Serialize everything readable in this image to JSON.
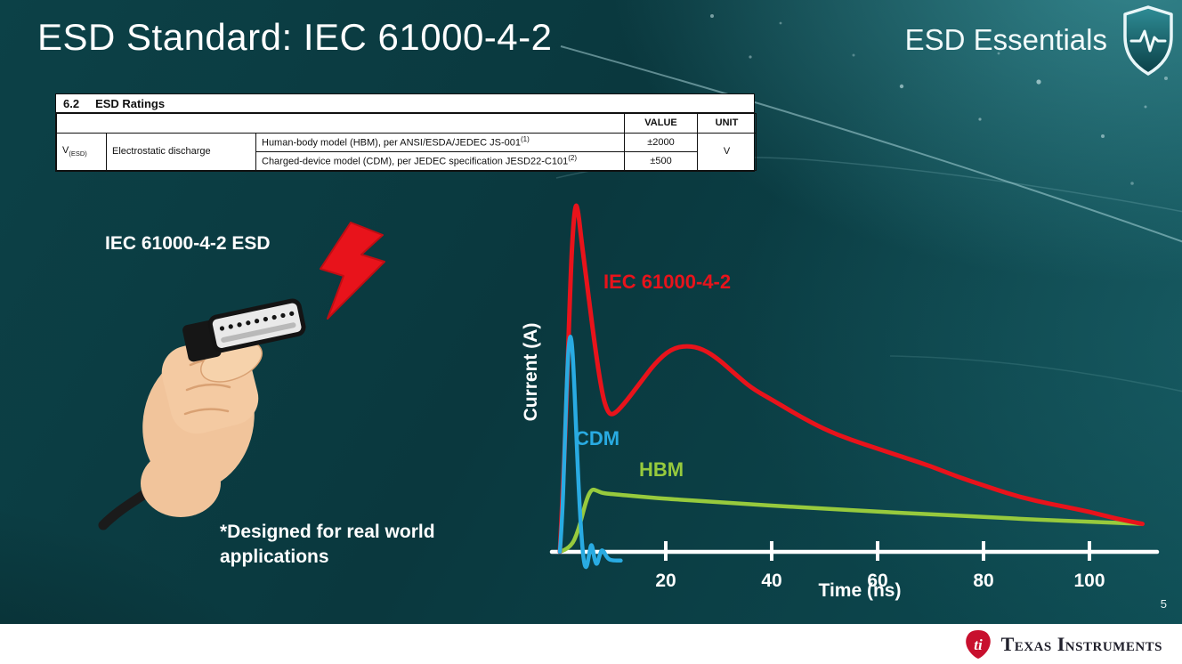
{
  "slide": {
    "title": "ESD Standard: IEC 61000-4-2",
    "brand": "ESD Essentials",
    "page_number": "5"
  },
  "ratings_table": {
    "section": "6.2",
    "section_title": "ESD Ratings",
    "columns": {
      "value": "VALUE",
      "unit": "UNIT"
    },
    "param": {
      "symbol": "V",
      "symbol_sub": "(ESD)",
      "name": "Electrostatic discharge"
    },
    "rows": [
      {
        "description": "Human-body model (HBM), per ANSI/ESDA/JEDEC JS-001",
        "footnote": "(1)",
        "value": "±2000"
      },
      {
        "description": "Charged-device model (CDM), per JEDEC specification JESD22-C101",
        "footnote": "(2)",
        "value": "±500"
      }
    ],
    "unit": "V"
  },
  "illustration": {
    "label": "IEC 61000-4-2 ESD",
    "caption": "*Designed for real world applications"
  },
  "chart_data": {
    "type": "line",
    "xlabel": "Time (ns)",
    "ylabel": "Current (A)",
    "x_ticks": [
      20,
      40,
      60,
      80,
      100
    ],
    "x_range": [
      0,
      112
    ],
    "y_axis": "unlabeled; y values are relative amplitude (IEC 61000-4-2 peak = 1.0)",
    "grid": false,
    "series": [
      {
        "name": "IEC 61000-4-2",
        "color": "#e8131b",
        "x": [
          0,
          1,
          2,
          2.5,
          3,
          3.5,
          4,
          5,
          6.5,
          8,
          9,
          10,
          12,
          15,
          18,
          21,
          24,
          27,
          30,
          33,
          36,
          40,
          45,
          50,
          55,
          60,
          65,
          70,
          75,
          80,
          85,
          90,
          95,
          100,
          105,
          110
        ],
        "y": [
          0,
          0.3,
          0.78,
          0.93,
          1.0,
          0.97,
          0.9,
          0.78,
          0.6,
          0.45,
          0.4,
          0.39,
          0.42,
          0.48,
          0.54,
          0.58,
          0.59,
          0.58,
          0.55,
          0.51,
          0.47,
          0.435,
          0.39,
          0.35,
          0.32,
          0.295,
          0.27,
          0.245,
          0.215,
          0.19,
          0.165,
          0.145,
          0.13,
          0.115,
          0.095,
          0.08
        ]
      },
      {
        "name": "CDM",
        "color": "#29abe2",
        "x": [
          0,
          0.5,
          1,
          1.5,
          1.75,
          2,
          2.25,
          2.5,
          3,
          3.5,
          4,
          4.5,
          5,
          5.5,
          6,
          6.5,
          7,
          7.5,
          8,
          9,
          10,
          11.5
        ],
        "y": [
          0,
          0.1,
          0.35,
          0.55,
          0.6,
          0.62,
          0.6,
          0.55,
          0.38,
          0.2,
          0.06,
          -0.03,
          -0.05,
          -0.01,
          0.03,
          -0.02,
          -0.04,
          -0.01,
          0.01,
          -0.02,
          -0.025,
          -0.025
        ]
      },
      {
        "name": "HBM",
        "color": "#97ca3d",
        "x": [
          0,
          2,
          3.5,
          5,
          6,
          7,
          8,
          10,
          15,
          20,
          30,
          40,
          50,
          60,
          70,
          80,
          90,
          100,
          110
        ],
        "y": [
          0,
          0.01,
          0.06,
          0.15,
          0.18,
          0.175,
          0.168,
          0.165,
          0.158,
          0.152,
          0.142,
          0.132,
          0.124,
          0.115,
          0.107,
          0.1,
          0.092,
          0.086,
          0.08
        ]
      }
    ]
  },
  "footer": {
    "brand": "Texas Instruments"
  }
}
